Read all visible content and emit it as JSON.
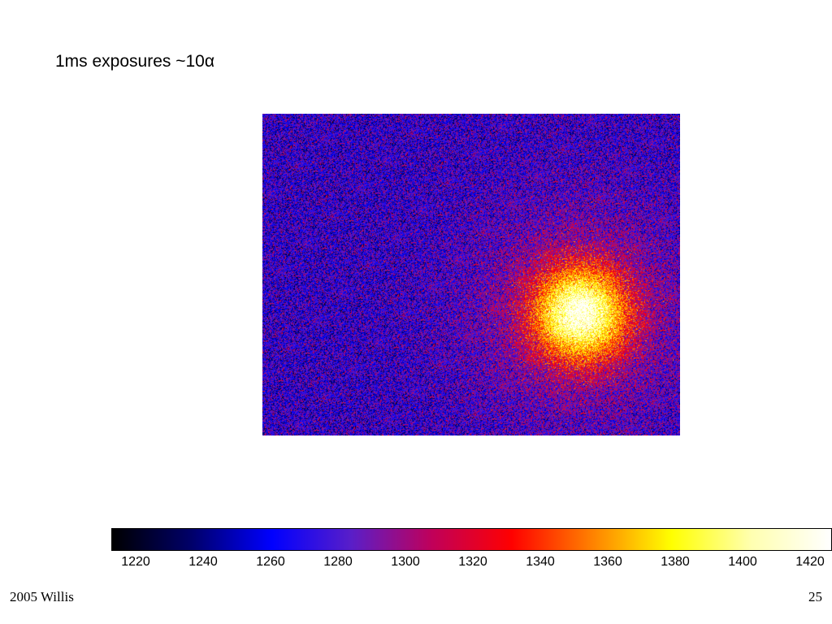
{
  "slide": {
    "title": "1ms exposures ~10α",
    "footer_left": "2005 Willis",
    "page_number": "25"
  },
  "image": {
    "description_colors": {
      "background_noise": [
        "#ff0000",
        "#3300ff",
        "#a000c0"
      ],
      "spot": "#ffffc0"
    }
  },
  "colorbar": {
    "colors": [
      "#000000",
      "#00006a",
      "#0000ff",
      "#5a1ec8",
      "#c0005a",
      "#ff0000",
      "#ff8000",
      "#ffff00",
      "#ffffb0",
      "#ffffff"
    ],
    "tick_labels": [
      "1220",
      "1240",
      "1260",
      "1280",
      "1300",
      "1320",
      "1340",
      "1360",
      "1380",
      "1400",
      "1420"
    ]
  }
}
